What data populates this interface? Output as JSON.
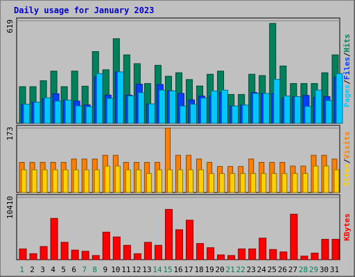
{
  "chart_data": {
    "type": "bar",
    "title": "Daily usage for January 2023",
    "days": [
      "1",
      "2",
      "3",
      "4",
      "5",
      "6",
      "7",
      "8",
      "9",
      "10",
      "11",
      "12",
      "13",
      "14",
      "15",
      "16",
      "17",
      "18",
      "19",
      "20",
      "21",
      "22",
      "23",
      "24",
      "25",
      "26",
      "27",
      "28",
      "29",
      "30",
      "31"
    ],
    "weekend_days": [
      "1",
      "7",
      "8",
      "14",
      "15",
      "21",
      "22",
      "28",
      "29"
    ],
    "panels": [
      {
        "id": "hits",
        "max_label": "619",
        "ylim": [
          0,
          619
        ],
        "legend": [
          "Pages",
          "/",
          "Files",
          "/",
          "Hits"
        ],
        "series": [
          {
            "name": "Hits",
            "color": "#00805c",
            "values": [
              221,
              221,
              257,
              315,
              221,
              315,
              224,
              433,
              323,
              511,
              413,
              360,
              240,
              350,
              284,
              305,
              264,
              225,
              296,
              315,
              174,
              174,
              296,
              288,
              603,
              346,
              240,
              240,
              240,
              305,
              413
            ]
          },
          {
            "name": "Files",
            "color": "#0040ff",
            "values": [
              115,
              127,
              148,
              178,
              140,
              134,
              111,
              280,
              170,
              310,
              170,
              236,
              117,
              234,
              196,
              180,
              141,
              164,
              164,
              185,
              104,
              110,
              186,
              180,
              180,
              152,
              161,
              168,
              157,
              161,
              279
            ]
          },
          {
            "name": "Pages",
            "color": "#00c8ff",
            "values": [
              115,
              127,
              154,
              134,
              140,
              105,
              100,
              300,
              150,
              310,
              165,
              185,
              117,
              200,
              195,
              104,
              115,
              152,
              195,
              200,
              104,
              110,
              180,
              180,
              265,
              165,
              161,
              102,
              200,
              137,
              300
            ]
          }
        ]
      },
      {
        "id": "visits",
        "max_label": "173",
        "ylim": [
          0,
          173
        ],
        "legend": [
          "Sites",
          "/",
          "Visits"
        ],
        "series": [
          {
            "name": "Visits",
            "color": "#ff8000",
            "values": [
              81,
              81,
              81,
              81,
              81,
              90,
              90,
              90,
              100,
              100,
              81,
              81,
              81,
              81,
              173,
              100,
              100,
              90,
              81,
              70,
              70,
              70,
              90,
              81,
              81,
              81,
              71,
              71,
              100,
              100,
              90
            ]
          },
          {
            "name": "Sites",
            "color": "#ffd000",
            "values": [
              61,
              61,
              61,
              61,
              61,
              61,
              61,
              61,
              71,
              71,
              61,
              61,
              51,
              61,
              61,
              61,
              61,
              61,
              51,
              51,
              51,
              51,
              51,
              51,
              51,
              51,
              51,
              51,
              71,
              71,
              61
            ]
          }
        ]
      },
      {
        "id": "kbytes",
        "max_label": "10410",
        "ylim": [
          0,
          10410
        ],
        "legend": [
          "KBytes"
        ],
        "series": [
          {
            "name": "KBytes",
            "color": "#ff0000",
            "values": [
              1800,
              1000,
              2200,
              6900,
              2900,
              1600,
              1400,
              700,
              4600,
              3800,
              2400,
              1000,
              2900,
              2400,
              8400,
              5000,
              6600,
              2700,
              2000,
              800,
              700,
              1800,
              1800,
              3600,
              1700,
              1300,
              7600,
              600,
              1100,
              3400,
              3400
            ]
          }
        ]
      }
    ]
  }
}
